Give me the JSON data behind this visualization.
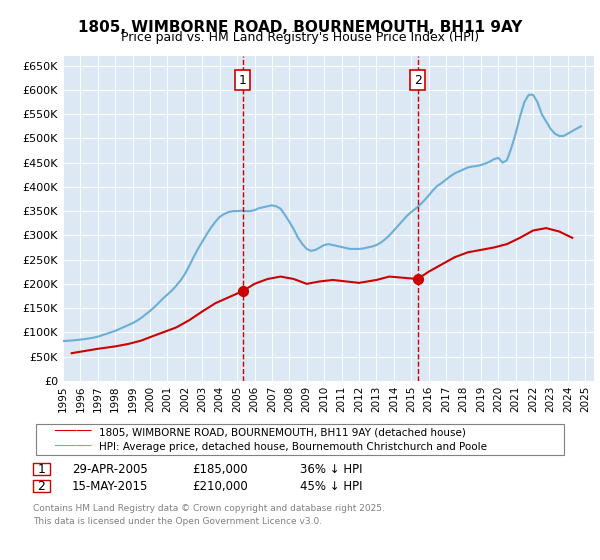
{
  "title": "1805, WIMBORNE ROAD, BOURNEMOUTH, BH11 9AY",
  "subtitle": "Price paid vs. HM Land Registry's House Price Index (HPI)",
  "xlabel": "",
  "ylabel": "",
  "ylim": [
    0,
    670000
  ],
  "yticks": [
    0,
    50000,
    100000,
    150000,
    200000,
    250000,
    300000,
    350000,
    400000,
    450000,
    500000,
    550000,
    600000,
    650000
  ],
  "ytick_labels": [
    "£0",
    "£50K",
    "£100K",
    "£150K",
    "£200K",
    "£250K",
    "£300K",
    "£350K",
    "£400K",
    "£450K",
    "£500K",
    "£550K",
    "£600K",
    "£650K"
  ],
  "xlim_start": 1995.0,
  "xlim_end": 2025.5,
  "bg_color": "#dce9f5",
  "fig_bg_color": "#ffffff",
  "hpi_color": "#6baed6",
  "price_color": "#cc0000",
  "vline_color": "#cc0000",
  "vline1_x": 2005.32,
  "vline2_x": 2015.37,
  "label1": "1",
  "label2": "2",
  "transaction1_date": "29-APR-2005",
  "transaction1_price": "£185,000",
  "transaction1_note": "36% ↓ HPI",
  "transaction2_date": "15-MAY-2015",
  "transaction2_price": "£210,000",
  "transaction2_note": "45% ↓ HPI",
  "legend_price": "1805, WIMBORNE ROAD, BOURNEMOUTH, BH11 9AY (detached house)",
  "legend_hpi": "HPI: Average price, detached house, Bournemouth Christchurch and Poole",
  "footer": "Contains HM Land Registry data © Crown copyright and database right 2025.\nThis data is licensed under the Open Government Licence v3.0.",
  "hpi_data_x": [
    1995.0,
    1995.25,
    1995.5,
    1995.75,
    1996.0,
    1996.25,
    1996.5,
    1996.75,
    1997.0,
    1997.25,
    1997.5,
    1997.75,
    1998.0,
    1998.25,
    1998.5,
    1998.75,
    1999.0,
    1999.25,
    1999.5,
    1999.75,
    2000.0,
    2000.25,
    2000.5,
    2000.75,
    2001.0,
    2001.25,
    2001.5,
    2001.75,
    2002.0,
    2002.25,
    2002.5,
    2002.75,
    2003.0,
    2003.25,
    2003.5,
    2003.75,
    2004.0,
    2004.25,
    2004.5,
    2004.75,
    2005.0,
    2005.25,
    2005.5,
    2005.75,
    2006.0,
    2006.25,
    2006.5,
    2006.75,
    2007.0,
    2007.25,
    2007.5,
    2007.75,
    2008.0,
    2008.25,
    2008.5,
    2008.75,
    2009.0,
    2009.25,
    2009.5,
    2009.75,
    2010.0,
    2010.25,
    2010.5,
    2010.75,
    2011.0,
    2011.25,
    2011.5,
    2011.75,
    2012.0,
    2012.25,
    2012.5,
    2012.75,
    2013.0,
    2013.25,
    2013.5,
    2013.75,
    2014.0,
    2014.25,
    2014.5,
    2014.75,
    2015.0,
    2015.25,
    2015.5,
    2015.75,
    2016.0,
    2016.25,
    2016.5,
    2016.75,
    2017.0,
    2017.25,
    2017.5,
    2017.75,
    2018.0,
    2018.25,
    2018.5,
    2018.75,
    2019.0,
    2019.25,
    2019.5,
    2019.75,
    2020.0,
    2020.25,
    2020.5,
    2020.75,
    2021.0,
    2021.25,
    2021.5,
    2021.75,
    2022.0,
    2022.25,
    2022.5,
    2022.75,
    2023.0,
    2023.25,
    2023.5,
    2023.75,
    2024.0,
    2024.25,
    2024.5,
    2024.75
  ],
  "hpi_data_y": [
    82000,
    82500,
    83000,
    84000,
    85000,
    86000,
    87500,
    89000,
    91000,
    94000,
    97000,
    100000,
    103000,
    107000,
    111000,
    115000,
    119000,
    124000,
    130000,
    137000,
    144000,
    152000,
    161000,
    170000,
    178000,
    186000,
    196000,
    207000,
    220000,
    237000,
    255000,
    272000,
    287000,
    302000,
    316000,
    328000,
    338000,
    344000,
    348000,
    350000,
    350000,
    351000,
    350000,
    350000,
    352000,
    356000,
    358000,
    360000,
    362000,
    360000,
    355000,
    342000,
    328000,
    313000,
    295000,
    282000,
    272000,
    268000,
    270000,
    275000,
    280000,
    282000,
    280000,
    278000,
    276000,
    274000,
    272000,
    272000,
    272000,
    273000,
    275000,
    277000,
    280000,
    285000,
    292000,
    300000,
    310000,
    320000,
    330000,
    340000,
    348000,
    355000,
    363000,
    372000,
    382000,
    393000,
    402000,
    408000,
    415000,
    422000,
    428000,
    432000,
    436000,
    440000,
    442000,
    443000,
    445000,
    448000,
    452000,
    457000,
    460000,
    450000,
    455000,
    480000,
    510000,
    545000,
    575000,
    590000,
    590000,
    575000,
    550000,
    535000,
    520000,
    510000,
    505000,
    505000,
    510000,
    515000,
    520000,
    525000
  ],
  "price_data_x": [
    1995.5,
    1996.0,
    1996.5,
    1997.0,
    1998.0,
    1998.75,
    1999.5,
    2000.0,
    2000.75,
    2001.5,
    2002.25,
    2003.0,
    2003.75,
    2004.5,
    2005.32,
    2006.0,
    2006.75,
    2007.5,
    2008.25,
    2009.0,
    2009.75,
    2010.5,
    2011.25,
    2012.0,
    2013.0,
    2013.75,
    2015.37,
    2016.0,
    2016.75,
    2017.5,
    2018.25,
    2019.0,
    2019.75,
    2020.5,
    2021.25,
    2022.0,
    2022.75,
    2023.5,
    2024.25
  ],
  "price_data_y": [
    57000,
    60000,
    63000,
    66000,
    71000,
    76000,
    83000,
    90000,
    100000,
    110000,
    125000,
    143000,
    160000,
    172000,
    185000,
    200000,
    210000,
    215000,
    210000,
    200000,
    205000,
    208000,
    205000,
    202000,
    208000,
    215000,
    210000,
    225000,
    240000,
    255000,
    265000,
    270000,
    275000,
    282000,
    295000,
    310000,
    315000,
    308000,
    295000
  ]
}
